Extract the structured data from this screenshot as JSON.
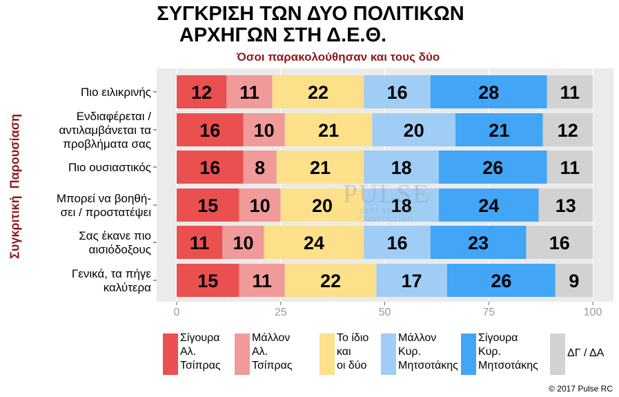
{
  "title_line1": "ΣΥΓΚΡΙΣΗ ΤΩΝ ΔΥΟ ΠΟΛΙΤΙΚΩΝ",
  "title_line2": "ΑΡΧΗΓΩΝ ΣΤΗ Δ.Ε.Θ.",
  "subtitle": "Όσοι παρακολούθησαν και τους δύο",
  "side_label": "Συγκριτική  Παρουσίαση",
  "watermark": {
    "line1": "PULSE",
    "line2": "RESEARCH & CONSULTING"
  },
  "copyright": "© 2017 Pulse RC",
  "colors": {
    "background_panel": "#ebebeb",
    "title_accent": "#8b1a1a",
    "series": [
      "#ea5050",
      "#f09a9a",
      "#fde08a",
      "#9fcdf6",
      "#42a5f5",
      "#d2d2d2"
    ]
  },
  "legend": [
    {
      "label": "Σίγουρα\nΑλ.\nΤσίπρας",
      "color": "#ea5050"
    },
    {
      "label": "Μάλλον\nΑλ.\nΤσίπρας",
      "color": "#f09a9a"
    },
    {
      "label": "Το ίδιο\nκαι\nοι δύο",
      "color": "#fde08a"
    },
    {
      "label": "Μάλλον\nΚυρ.\nΜητσοτάκης",
      "color": "#9fcdf6"
    },
    {
      "label": "Σίγουρα\nΚυρ.\nΜητσοτάκης",
      "color": "#42a5f5"
    },
    {
      "label": "ΔΓ / ΔΑ",
      "color": "#d2d2d2"
    }
  ],
  "chart_data": {
    "type": "bar",
    "orientation": "horizontal",
    "stacked": true,
    "xlim": [
      0,
      100
    ],
    "xticks": [
      0,
      25,
      50,
      75,
      100
    ],
    "grid": true,
    "legend_position": "bottom",
    "categories": [
      "Πιο ειλικρινής",
      "Ενδιαφέρεται /\nαντιλαμβάνεται τα\nπροβλήματα σας",
      "Πιο ουσιαστικός",
      "Μπορεί να βοηθή-\nσει / προστατέψει",
      "Σας έκανε πιο\nαισιόδοξους",
      "Γενικά, τα πήγε\nκαλύτερα"
    ],
    "series": [
      {
        "name": "Σίγουρα Αλ. Τσίπρας",
        "values": [
          12,
          16,
          16,
          15,
          11,
          15
        ]
      },
      {
        "name": "Μάλλον Αλ. Τσίπρας",
        "values": [
          11,
          10,
          8,
          10,
          10,
          11
        ]
      },
      {
        "name": "Το ίδιο και οι δύο",
        "values": [
          22,
          21,
          21,
          20,
          24,
          22
        ]
      },
      {
        "name": "Μάλλον Κυρ. Μητσοτάκης",
        "values": [
          16,
          20,
          18,
          18,
          16,
          17
        ]
      },
      {
        "name": "Σίγουρα Κυρ. Μητσοτάκης",
        "values": [
          28,
          21,
          26,
          24,
          23,
          26
        ]
      },
      {
        "name": "ΔΓ / ΔΑ",
        "values": [
          11,
          12,
          11,
          13,
          16,
          9
        ]
      }
    ]
  }
}
